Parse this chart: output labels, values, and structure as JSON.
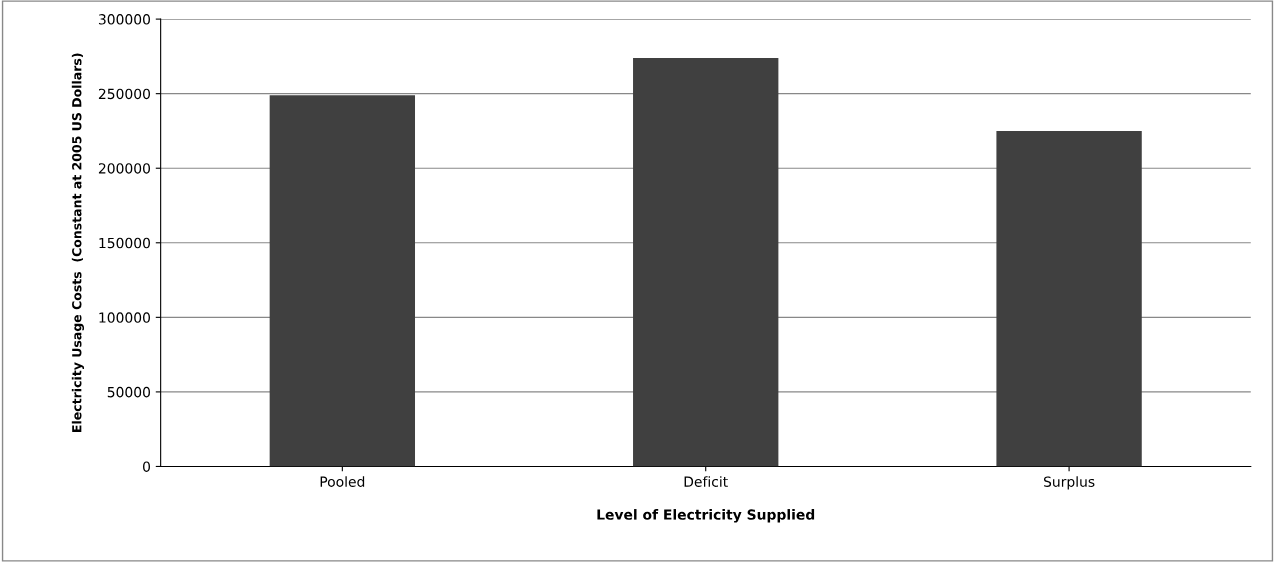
{
  "chart_data": {
    "type": "bar",
    "xlabel": "Level of Electricity Supplied",
    "ylabel": "Electricity Usage Costs  (Constant at 2005 US Dollars)",
    "categories": [
      "Pooled",
      "Deficit",
      "Surplus"
    ],
    "values": [
      249000,
      274000,
      225000
    ],
    "color": "#404040",
    "ylim": [
      0,
      300000
    ],
    "yticks": [
      0,
      50000,
      100000,
      150000,
      200000,
      250000,
      300000
    ],
    "grid": "y",
    "legend": false
  }
}
